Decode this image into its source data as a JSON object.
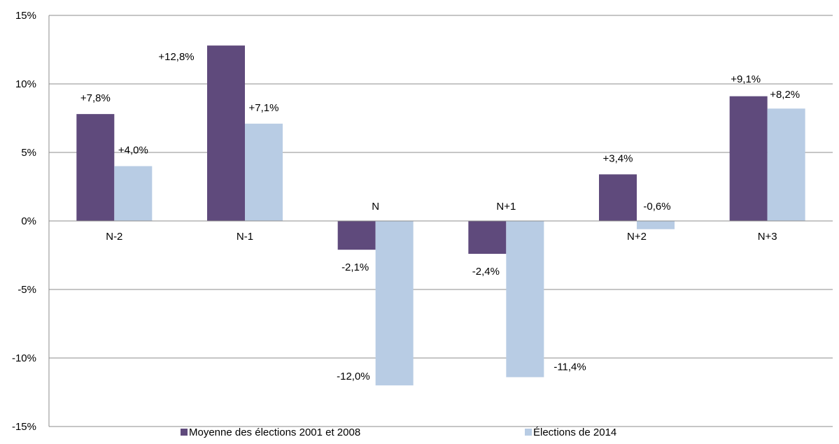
{
  "chart_data": {
    "type": "bar",
    "categories": [
      "N-2",
      "N-1",
      "N",
      "N+1",
      "N+2",
      "N+3"
    ],
    "series": [
      {
        "name": "Moyenne des élections 2001 et 2008",
        "values": [
          7.8,
          12.8,
          -2.1,
          -2.4,
          3.4,
          9.1
        ],
        "labels": [
          "+7,8%",
          "+12,8%",
          "-2,1%",
          "-2,4%",
          "+3,4%",
          "+9,1%"
        ],
        "color": "#5f4a7c"
      },
      {
        "name": "Élections de 2014",
        "values": [
          4.0,
          7.1,
          -12.0,
          -11.4,
          -0.6,
          8.2
        ],
        "labels": [
          "+4,0%",
          "+7,1%",
          "-12,0%",
          "-11,4%",
          "-0,6%",
          "+8,2%"
        ],
        "color": "#b8cce4"
      }
    ],
    "ylim": [
      -15,
      15
    ],
    "yticks": [
      15,
      10,
      5,
      0,
      -5,
      -10,
      -15
    ],
    "ytick_labels": [
      "15%",
      "10%",
      "5%",
      "0%",
      "-5%",
      "-10%",
      "-15%"
    ],
    "grid": true,
    "legend_position": "bottom",
    "title": "",
    "xlabel": "",
    "ylabel": ""
  }
}
